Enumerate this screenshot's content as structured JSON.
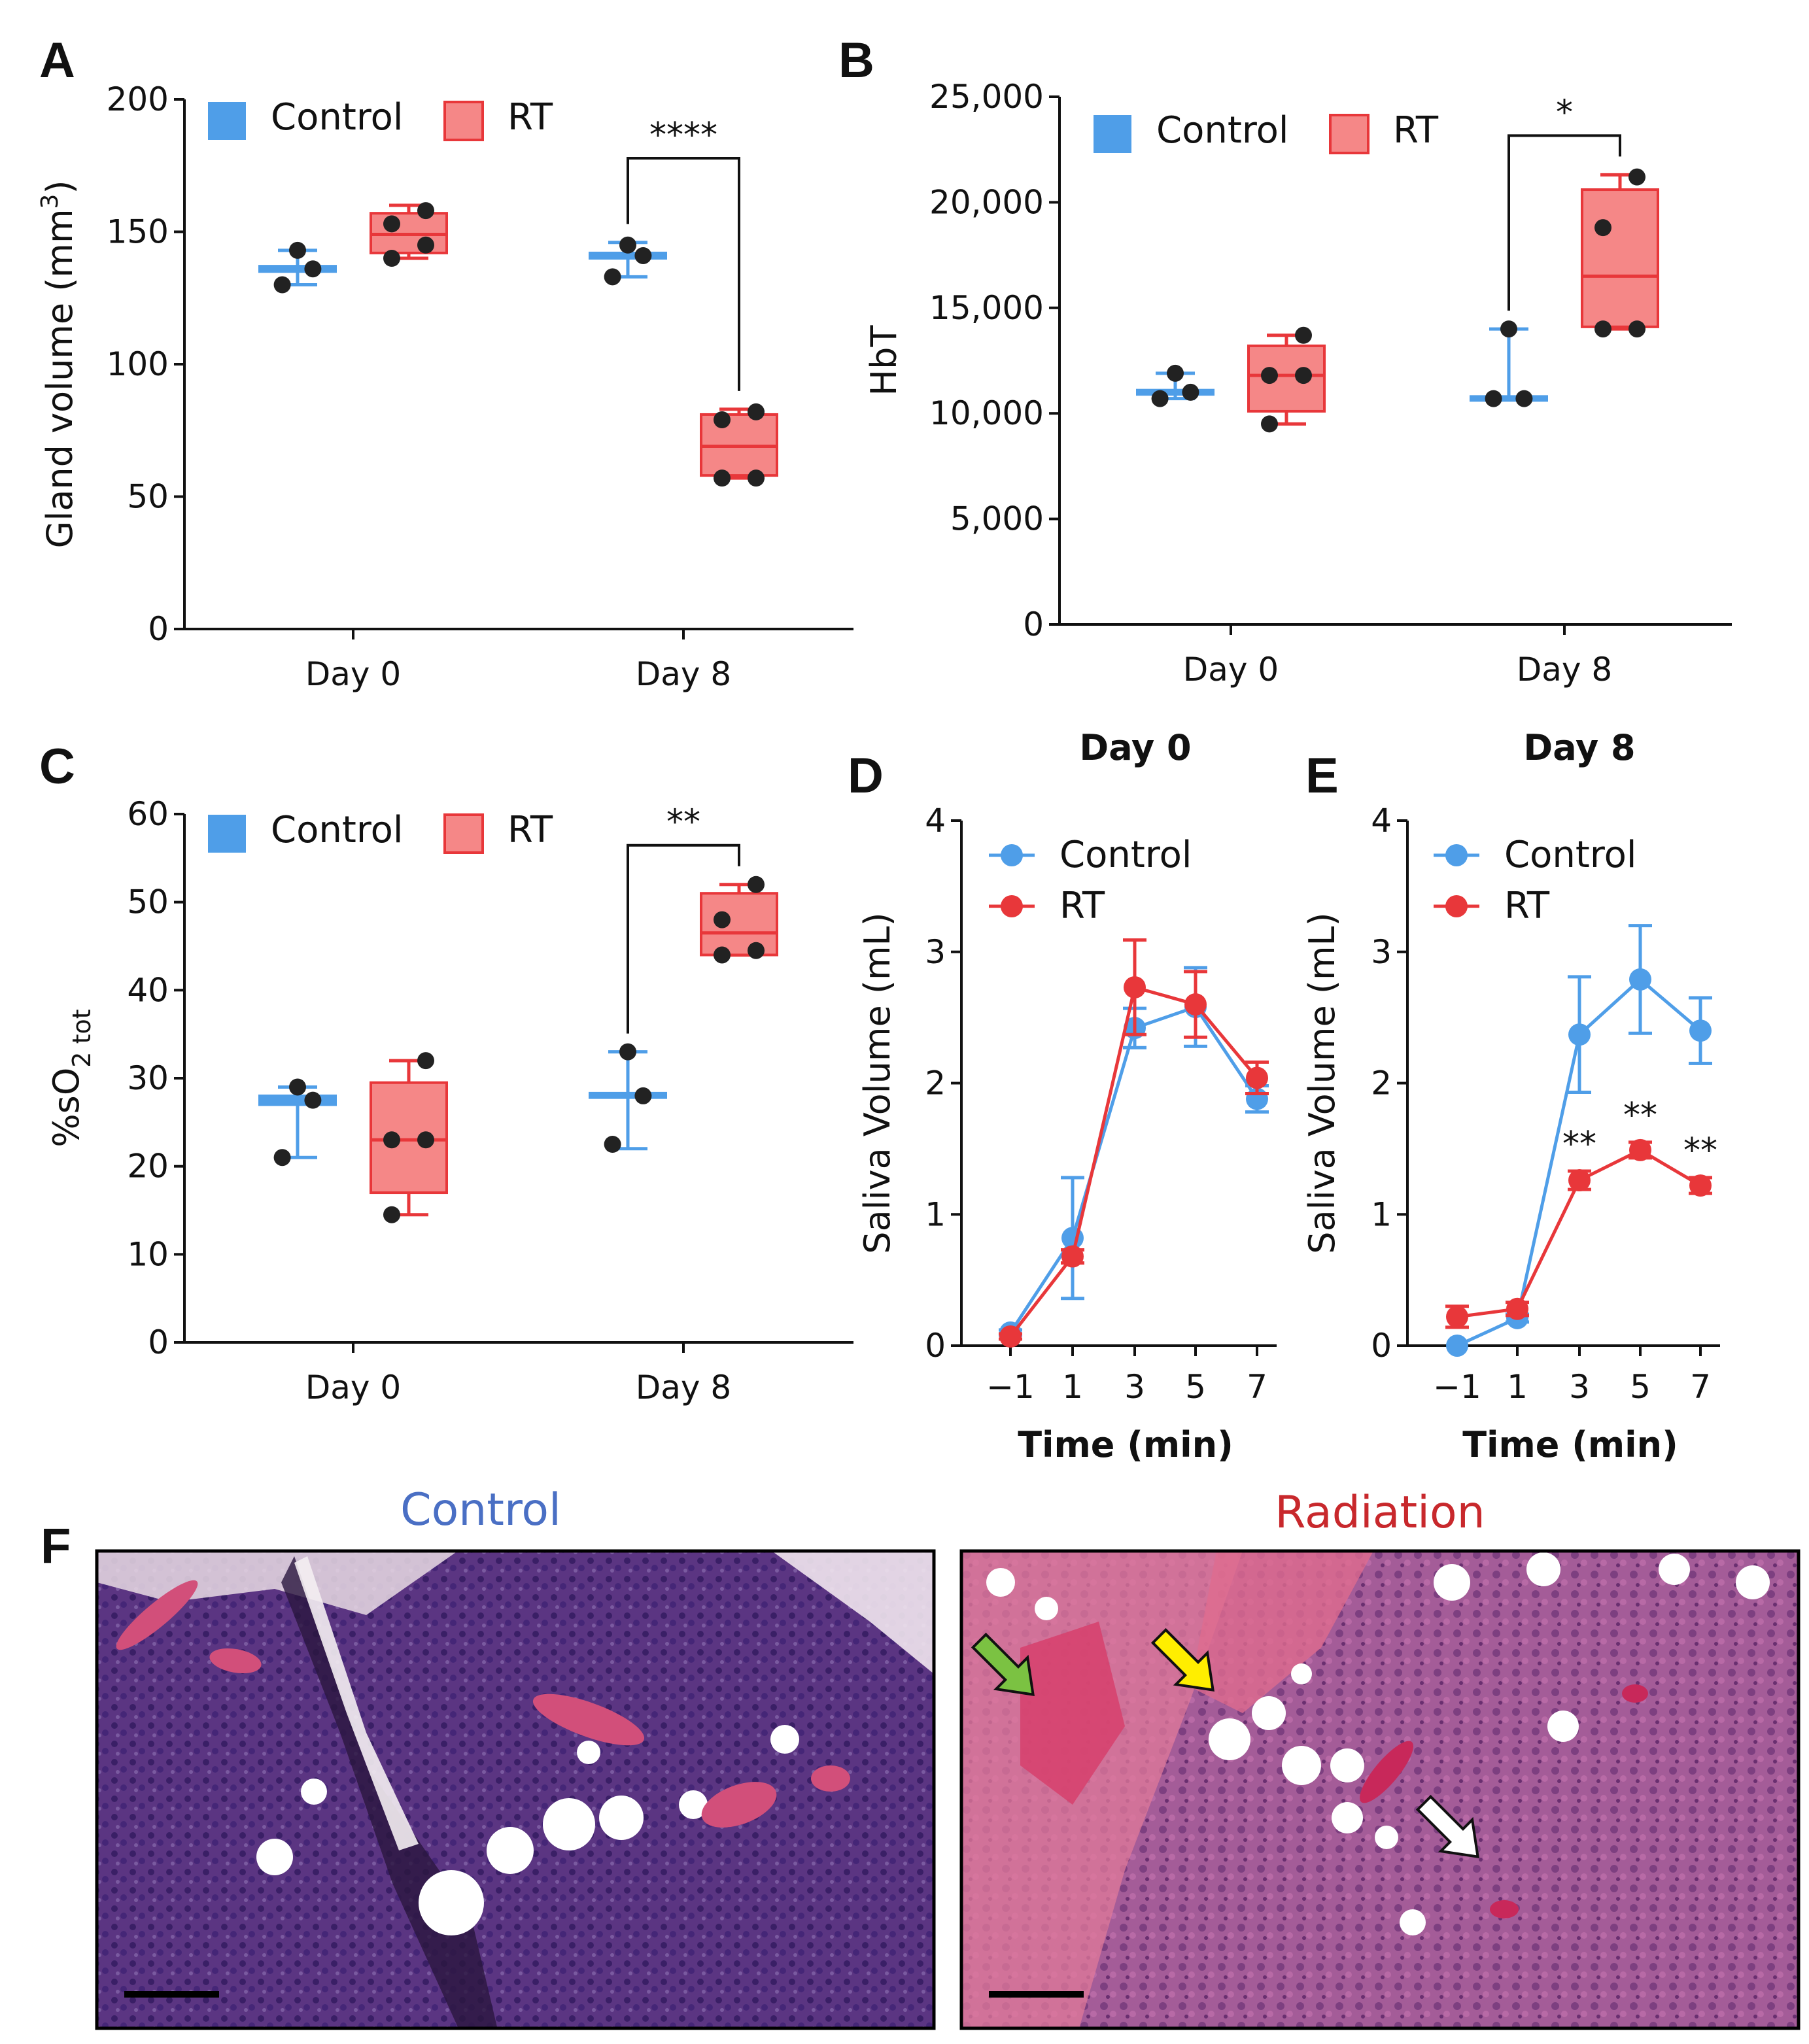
{
  "colors": {
    "control": "#4f9ee8",
    "rt": "#e8373a",
    "rt_fill": "#f58787"
  },
  "chart_data": [
    {
      "panel": "A",
      "type": "box",
      "ylabel": "Gland volume (mm",
      "ylabel_sup": "3",
      "ylabel_end": ")",
      "ylim": [
        0,
        200
      ],
      "yticks": [
        0,
        50,
        100,
        150,
        200
      ],
      "yticklabels": [
        "0",
        "50",
        "100",
        "150",
        "200"
      ],
      "categories": [
        "Day 0",
        "Day 8"
      ],
      "legend": [
        "Control",
        "RT"
      ],
      "series": [
        {
          "name": "Control",
          "boxes": [
            {
              "min": 130,
              "q1": 135,
              "median": 136,
              "q3": 137,
              "max": 143,
              "points": [
                130,
                136,
                143
              ]
            },
            {
              "min": 133,
              "q1": 140,
              "median": 141,
              "q3": 142,
              "max": 146,
              "points": [
                133,
                141,
                145
              ]
            }
          ]
        },
        {
          "name": "RT",
          "boxes": [
            {
              "min": 140,
              "q1": 142,
              "median": 149,
              "q3": 157,
              "max": 160,
              "points": [
                140,
                145,
                153,
                158
              ]
            },
            {
              "min": 57,
              "q1": 58,
              "median": 69,
              "q3": 81,
              "max": 83,
              "points": [
                57,
                57,
                79,
                82
              ]
            }
          ]
        }
      ],
      "annotation": "****"
    },
    {
      "panel": "B",
      "type": "box",
      "ylabel": "HbT",
      "ylim": [
        0,
        25000
      ],
      "yticks": [
        0,
        5000,
        10000,
        15000,
        20000,
        25000
      ],
      "yticklabels": [
        "0",
        "5,000",
        "10,000",
        "15,000",
        "20,000",
        "25,000"
      ],
      "categories": [
        "Day 0",
        "Day 8"
      ],
      "legend": [
        "Control",
        "RT"
      ],
      "series": [
        {
          "name": "Control",
          "boxes": [
            {
              "min": 10700,
              "q1": 10900,
              "median": 11000,
              "q3": 11100,
              "max": 11900,
              "points": [
                10700,
                11000,
                11900
              ]
            },
            {
              "min": 10700,
              "q1": 10700,
              "median": 10700,
              "q3": 10800,
              "max": 14000,
              "points": [
                10700,
                10700,
                14000
              ]
            }
          ]
        },
        {
          "name": "RT",
          "boxes": [
            {
              "min": 9500,
              "q1": 10100,
              "median": 11800,
              "q3": 13200,
              "max": 13700,
              "points": [
                9500,
                11800,
                11800,
                13700
              ]
            },
            {
              "min": 14000,
              "q1": 14100,
              "median": 16500,
              "q3": 20600,
              "max": 21300,
              "points": [
                14000,
                14000,
                18800,
                21200
              ]
            }
          ]
        }
      ],
      "annotation": "*"
    },
    {
      "panel": "C",
      "type": "box",
      "ylabel": "%sO",
      "ylabel_sub": "2 tot",
      "ylim": [
        0,
        60
      ],
      "yticks": [
        0,
        10,
        20,
        30,
        40,
        50,
        60
      ],
      "yticklabels": [
        "0",
        "10",
        "20",
        "30",
        "40",
        "50",
        "60"
      ],
      "categories": [
        "Day 0",
        "Day 8"
      ],
      "legend": [
        "Control",
        "RT"
      ],
      "series": [
        {
          "name": "Control",
          "boxes": [
            {
              "min": 21,
              "q1": 27,
              "median": 27.5,
              "q3": 28,
              "max": 29,
              "points": [
                21,
                27.5,
                29
              ]
            },
            {
              "min": 22,
              "q1": 27.8,
              "median": 28,
              "q3": 28.3,
              "max": 33,
              "points": [
                22.5,
                28,
                33
              ]
            }
          ]
        },
        {
          "name": "RT",
          "boxes": [
            {
              "min": 14.5,
              "q1": 17,
              "median": 23,
              "q3": 29.5,
              "max": 32,
              "points": [
                14.5,
                23,
                23,
                32
              ]
            },
            {
              "min": 44,
              "q1": 44,
              "median": 46.5,
              "q3": 51,
              "max": 52,
              "points": [
                44,
                44.5,
                48,
                52
              ]
            }
          ]
        }
      ],
      "annotation": "**"
    },
    {
      "panel": "D",
      "type": "line",
      "title": "Day 0",
      "xlabel": "Time (min)",
      "ylabel": "Saliva Volume (mL)",
      "x": [
        -1,
        1,
        3,
        5,
        7
      ],
      "xticklabels": [
        "−1",
        "1",
        "3",
        "5",
        "7"
      ],
      "ylim": [
        0,
        4
      ],
      "yticks": [
        0,
        1,
        2,
        3,
        4
      ],
      "yticklabels": [
        "0",
        "1",
        "2",
        "3",
        "4"
      ],
      "series": [
        {
          "name": "Control",
          "values": [
            0.1,
            0.82,
            2.42,
            2.58,
            1.88
          ],
          "errors": [
            0.02,
            0.46,
            0.15,
            0.3,
            0.1
          ]
        },
        {
          "name": "RT",
          "values": [
            0.07,
            0.68,
            2.73,
            2.6,
            2.04
          ],
          "errors": [
            0.02,
            0.05,
            0.36,
            0.25,
            0.12
          ]
        }
      ]
    },
    {
      "panel": "E",
      "type": "line",
      "title": "Day 8",
      "xlabel": "Time (min)",
      "ylabel": "Saliva Volume (mL)",
      "x": [
        -1,
        1,
        3,
        5,
        7
      ],
      "xticklabels": [
        "−1",
        "1",
        "3",
        "5",
        "7"
      ],
      "ylim": [
        0,
        4
      ],
      "yticks": [
        0,
        1,
        2,
        3,
        4
      ],
      "yticklabels": [
        "0",
        "1",
        "2",
        "3",
        "4"
      ],
      "series": [
        {
          "name": "Control",
          "values": [
            0.0,
            0.21,
            2.37,
            2.79,
            2.4
          ],
          "errors": [
            0.0,
            0.03,
            0.44,
            0.41,
            0.25
          ]
        },
        {
          "name": "RT",
          "values": [
            0.22,
            0.28,
            1.26,
            1.49,
            1.22
          ],
          "errors": [
            0.08,
            0.05,
            0.07,
            0.06,
            0.06
          ]
        }
      ],
      "significance": [
        {
          "x": 3,
          "label": "**"
        },
        {
          "x": 5,
          "label": "**"
        },
        {
          "x": 7,
          "label": "**"
        }
      ]
    }
  ],
  "panel_f": {
    "letter": "F",
    "left_title": "Control",
    "right_title": "Radiation",
    "left_title_color": "#4a6fc4",
    "right_title_color": "#c8282c",
    "arrows": [
      "green",
      "yellow",
      "white"
    ]
  }
}
